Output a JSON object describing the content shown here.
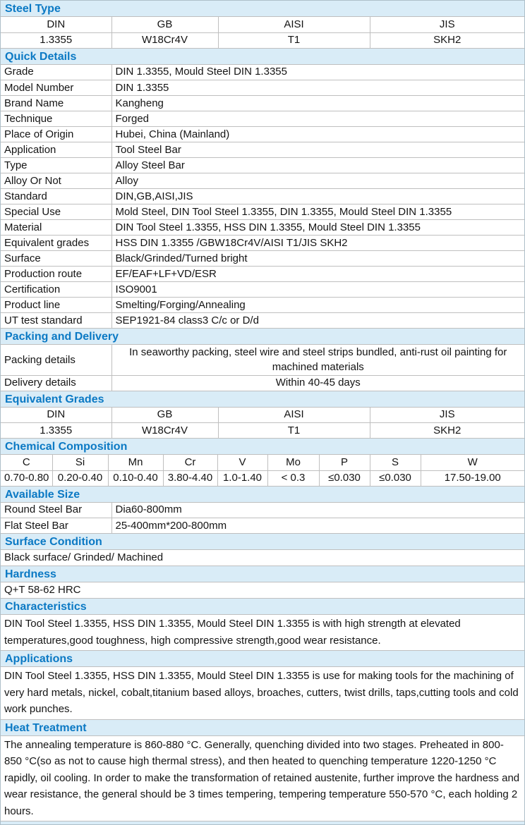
{
  "theme": {
    "accent_blue": "#0b79c4",
    "section_header_bg": "#d9ecf7",
    "border_color": "#bfbfbf"
  },
  "steel_type": {
    "title": "Steel Type",
    "headers": [
      "DIN",
      "GB",
      "AISI",
      "JIS"
    ],
    "values": [
      "1.3355",
      "W18Cr4V",
      "T1",
      "SKH2"
    ]
  },
  "quick_details": {
    "title": "Quick Details",
    "rows": [
      {
        "label": "Grade",
        "value": "DIN 1.3355, Mould Steel DIN 1.3355"
      },
      {
        "label": "Model Number",
        "value": "DIN 1.3355"
      },
      {
        "label": "Brand Name",
        "value": "Kangheng"
      },
      {
        "label": "Technique",
        "value": "Forged"
      },
      {
        "label": "Place of Origin",
        "value": "Hubei, China (Mainland)"
      },
      {
        "label": "Application",
        "value": "Tool Steel Bar"
      },
      {
        "label": "Type",
        "value": "Alloy Steel Bar"
      },
      {
        "label": "Alloy Or Not",
        "value": "Alloy"
      },
      {
        "label": "Standard",
        "value": "DIN,GB,AISI,JIS"
      },
      {
        "label": "Special Use",
        "value": "Mold Steel, DIN Tool Steel 1.3355, DIN 1.3355, Mould Steel DIN 1.3355"
      },
      {
        "label": "Material",
        "value": "DIN Tool Steel 1.3355, HSS DIN 1.3355, Mould Steel DIN 1.3355"
      },
      {
        "label": "Equivalent grades",
        "value": "HSS DIN 1.3355 /GBW18Cr4V/AISI T1/JIS SKH2"
      },
      {
        "label": "Surface",
        "value": "Black/Grinded/Turned bright"
      },
      {
        "label": "Production route",
        "value": "EF/EAF+LF+VD/ESR"
      },
      {
        "label": "Certification",
        "value": "ISO9001"
      },
      {
        "label": "Product line",
        "value": "Smelting/Forging/Annealing"
      },
      {
        "label": "UT test standard",
        "value": "SEP1921-84 class3 C/c or D/d"
      }
    ]
  },
  "packing_delivery": {
    "title": "Packing and Delivery",
    "rows": [
      {
        "label": "Packing details",
        "value": "In seaworthy packing, steel wire and steel strips bundled, anti-rust oil painting for machined materials"
      },
      {
        "label": "Delivery details",
        "value": "Within 40-45 days"
      }
    ]
  },
  "equivalent_grades": {
    "title": "Equivalent Grades",
    "headers": [
      "DIN",
      "GB",
      "AISI",
      "JIS"
    ],
    "values": [
      "1.3355",
      "W18Cr4V",
      "T1",
      "SKH2"
    ]
  },
  "chemical_composition": {
    "title": "Chemical Composition",
    "chart_data": {
      "type": "table",
      "categories": [
        "C",
        "Si",
        "Mn",
        "Cr",
        "V",
        "Mo",
        "P",
        "S",
        "W"
      ],
      "values": [
        "0.70-0.80",
        "0.20-0.40",
        "0.10-0.40",
        "3.80-4.40",
        "1.0-1.40",
        "< 0.3",
        "≤0.030",
        "≤0.030",
        "17.50-19.00"
      ]
    }
  },
  "available_size": {
    "title": "Available Size",
    "rows": [
      {
        "label": "Round Steel Bar",
        "value": "Dia60-800mm"
      },
      {
        "label": "Flat Steel Bar",
        "value": "25-400mm*200-800mm"
      }
    ]
  },
  "surface_condition": {
    "title": "Surface Condition",
    "text": "Black surface/ Grinded/ Machined"
  },
  "hardness": {
    "title": "Hardness",
    "text": "Q+T 58-62 HRC"
  },
  "characteristics": {
    "title": "Characteristics",
    "text": "DIN Tool Steel 1.3355, HSS DIN 1.3355, Mould Steel DIN 1.3355 is with high strength at elevated temperatures,good toughness, high compressive strength,good wear resistance."
  },
  "applications": {
    "title": "Applications",
    "text": "DIN Tool Steel 1.3355, HSS DIN 1.3355, Mould Steel DIN 1.3355 is use for making tools for the machining of very hard metals, nickel, cobalt,titanium based alloys, broaches, cutters, twist drills, taps,cutting tools and cold work punches."
  },
  "heat_treatment": {
    "title": "Heat Treatment",
    "text": "The annealing temperature is 860-880 °C. Generally, quenching divided into two stages. Preheated in 800- 850 °C(so as not to cause high thermal stress), and then heated to quenching temperature 1220-1250 °C rapidly, oil cooling. In order to make the transformation of retained austenite, further improve the hardness and wear resistance, the general should be 3 times tempering, tempering temperature 550-570 °C, each holding 2 hours."
  }
}
